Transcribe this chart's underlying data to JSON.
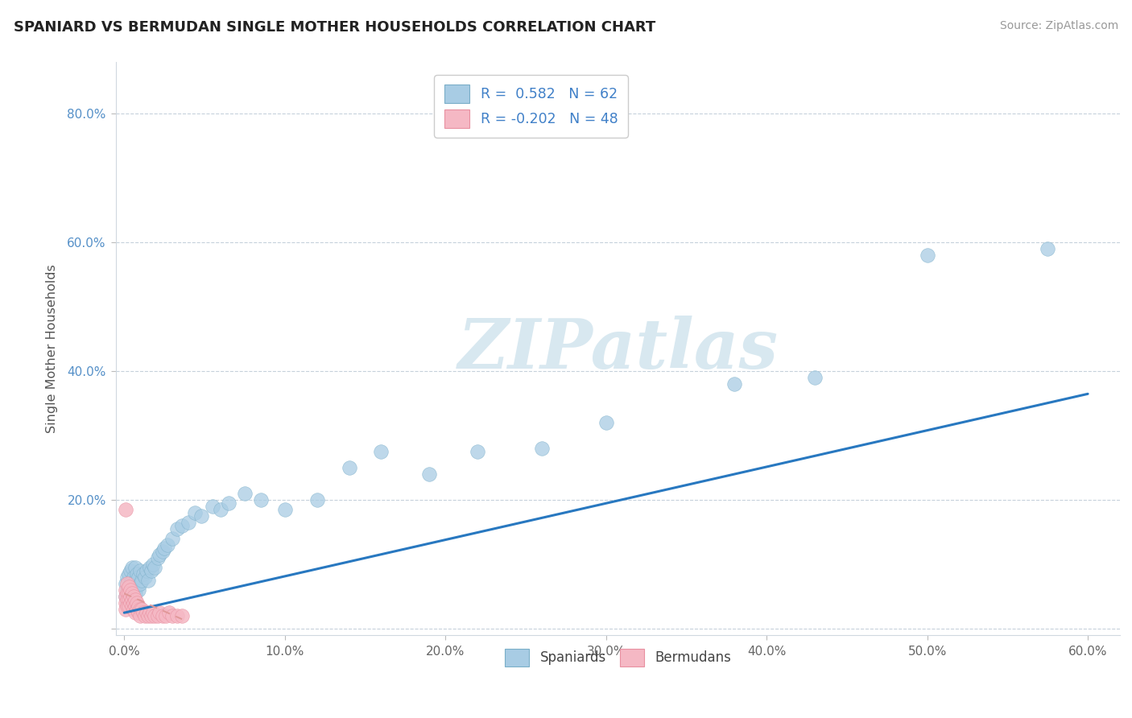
{
  "title": "SPANIARD VS BERMUDAN SINGLE MOTHER HOUSEHOLDS CORRELATION CHART",
  "source": "Source: ZipAtlas.com",
  "xlim": [
    -0.005,
    0.62
  ],
  "ylim": [
    -0.01,
    0.88
  ],
  "blue_color": "#a8cce4",
  "blue_edge_color": "#7aaec8",
  "pink_color": "#f5b8c4",
  "pink_edge_color": "#e890a0",
  "blue_line_color": "#2878c0",
  "pink_line_color": "#e09898",
  "watermark": "ZIPatlas",
  "watermark_color": "#d8e8f0",
  "legend_blue_r": "0.582",
  "legend_blue_n": "62",
  "legend_pink_r": "-0.202",
  "legend_pink_n": "48",
  "r_value_color": "#4080c8",
  "ylabel": "Single Mother Households",
  "x_tick_vals": [
    0.0,
    0.1,
    0.2,
    0.3,
    0.4,
    0.5,
    0.6
  ],
  "x_tick_labels": [
    "0.0%",
    "10.0%",
    "20.0%",
    "30.0%",
    "40.0%",
    "50.0%",
    "60.0%"
  ],
  "y_tick_vals": [
    0.0,
    0.2,
    0.4,
    0.6,
    0.8
  ],
  "y_tick_labels": [
    "",
    "20.0%",
    "40.0%",
    "60.0%",
    "80.0%"
  ],
  "sp_x": [
    0.001,
    0.001,
    0.002,
    0.002,
    0.002,
    0.003,
    0.003,
    0.003,
    0.004,
    0.004,
    0.004,
    0.005,
    0.005,
    0.005,
    0.006,
    0.006,
    0.007,
    0.007,
    0.007,
    0.008,
    0.008,
    0.009,
    0.009,
    0.01,
    0.01,
    0.011,
    0.012,
    0.013,
    0.014,
    0.015,
    0.016,
    0.017,
    0.018,
    0.019,
    0.021,
    0.022,
    0.024,
    0.025,
    0.027,
    0.03,
    0.033,
    0.036,
    0.04,
    0.044,
    0.048,
    0.055,
    0.06,
    0.065,
    0.075,
    0.085,
    0.1,
    0.12,
    0.14,
    0.16,
    0.19,
    0.22,
    0.26,
    0.3,
    0.38,
    0.43,
    0.5,
    0.575
  ],
  "sp_y": [
    0.05,
    0.07,
    0.04,
    0.06,
    0.08,
    0.045,
    0.065,
    0.085,
    0.05,
    0.07,
    0.09,
    0.055,
    0.075,
    0.095,
    0.06,
    0.08,
    0.055,
    0.075,
    0.095,
    0.065,
    0.085,
    0.06,
    0.08,
    0.07,
    0.09,
    0.075,
    0.085,
    0.08,
    0.09,
    0.075,
    0.095,
    0.09,
    0.1,
    0.095,
    0.11,
    0.115,
    0.12,
    0.125,
    0.13,
    0.14,
    0.155,
    0.16,
    0.165,
    0.18,
    0.175,
    0.19,
    0.185,
    0.195,
    0.21,
    0.2,
    0.185,
    0.2,
    0.25,
    0.275,
    0.24,
    0.275,
    0.28,
    0.32,
    0.38,
    0.39,
    0.58,
    0.59
  ],
  "bm_x": [
    0.001,
    0.001,
    0.001,
    0.001,
    0.001,
    0.002,
    0.002,
    0.002,
    0.002,
    0.003,
    0.003,
    0.003,
    0.003,
    0.004,
    0.004,
    0.004,
    0.005,
    0.005,
    0.005,
    0.006,
    0.006,
    0.006,
    0.007,
    0.007,
    0.007,
    0.008,
    0.008,
    0.009,
    0.009,
    0.01,
    0.01,
    0.011,
    0.012,
    0.013,
    0.014,
    0.015,
    0.016,
    0.017,
    0.018,
    0.019,
    0.021,
    0.022,
    0.024,
    0.026,
    0.028,
    0.03,
    0.033,
    0.036
  ],
  "bm_y": [
    0.185,
    0.06,
    0.05,
    0.04,
    0.03,
    0.07,
    0.055,
    0.045,
    0.035,
    0.065,
    0.055,
    0.045,
    0.035,
    0.06,
    0.05,
    0.04,
    0.055,
    0.045,
    0.035,
    0.05,
    0.04,
    0.03,
    0.045,
    0.035,
    0.025,
    0.04,
    0.03,
    0.035,
    0.025,
    0.03,
    0.02,
    0.03,
    0.025,
    0.02,
    0.025,
    0.02,
    0.025,
    0.02,
    0.025,
    0.02,
    0.02,
    0.025,
    0.02,
    0.02,
    0.025,
    0.02,
    0.02,
    0.02
  ],
  "sp_line_x": [
    0.0,
    0.6
  ],
  "sp_line_y": [
    0.025,
    0.365
  ],
  "bm_line_x": [
    0.0,
    0.036
  ],
  "bm_line_y": [
    0.055,
    0.015
  ]
}
